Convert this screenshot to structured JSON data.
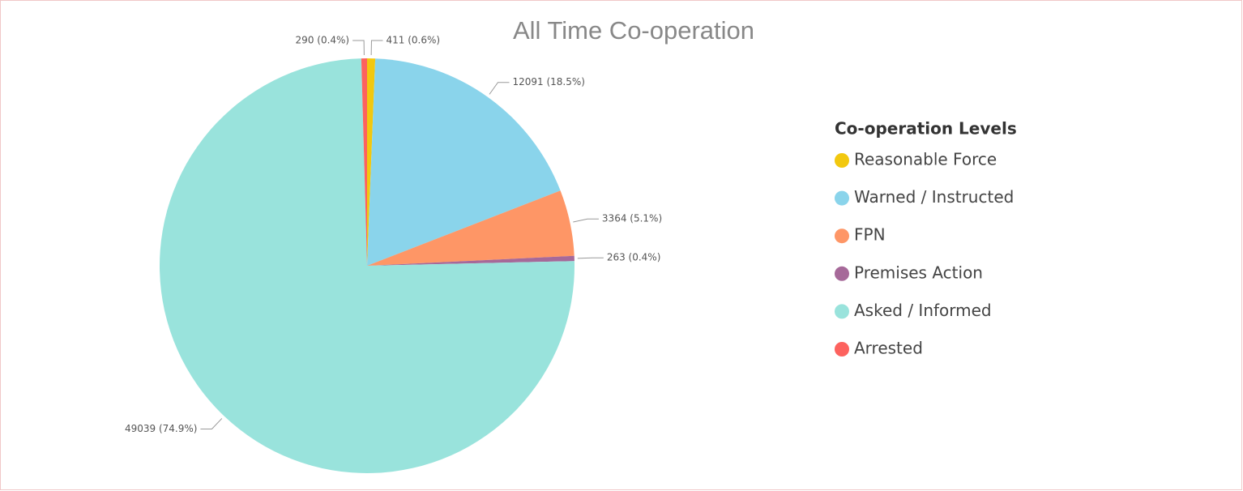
{
  "chart_data": {
    "type": "pie",
    "title": "All Time Co-operation",
    "legend_title": "Co-operation Levels",
    "categories": [
      "Reasonable Force",
      "Warned / Instructed",
      "FPN",
      "Premises Action",
      "Asked / Informed",
      "Arrested"
    ],
    "values": [
      411,
      12091,
      3364,
      263,
      49039,
      290
    ],
    "value_labels": [
      "411 (0.6%)",
      "12091 (18.5%)",
      "3364 (5.1%)",
      "263 (0.4%)",
      "49039 (74.9%)",
      "290 (0.4%)"
    ],
    "colors": [
      "#f2c80f",
      "#8ad4eb",
      "#fe9666",
      "#a66999",
      "#99e3dc",
      "#fd625e"
    ],
    "legend": "right"
  }
}
